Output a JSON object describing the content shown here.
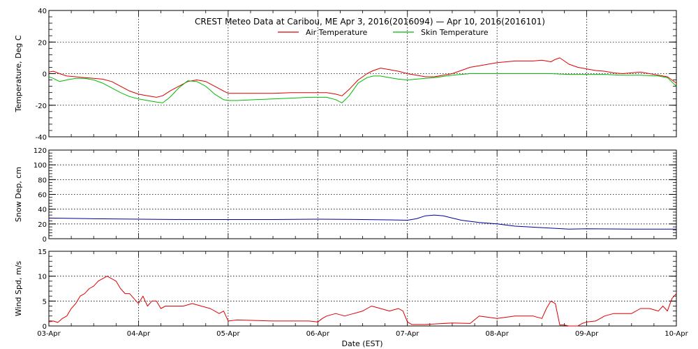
{
  "figure": {
    "title": "CREST Meteo Data at Caribou, ME   Apr  3, 2016(2016094) — Apr 10, 2016(2016101)",
    "xlabel": "Date (EST)",
    "x_tick_labels": [
      "03-Apr",
      "04-Apr",
      "05-Apr",
      "06-Apr",
      "07-Apr",
      "08-Apr",
      "09-Apr",
      "10-Apr"
    ]
  },
  "chart_data": [
    {
      "type": "line",
      "ylabel": "Temperature, Deg C",
      "xlim": [
        0,
        7
      ],
      "ylim": [
        -40,
        40
      ],
      "y_ticks": [
        -40,
        -20,
        0,
        20,
        40
      ],
      "grid": true,
      "legend": "top-center",
      "series": [
        {
          "name": "Air Temperature",
          "color": "#dd0000",
          "x": [
            0,
            0.05,
            0.12,
            0.2,
            0.3,
            0.4,
            0.5,
            0.6,
            0.7,
            0.8,
            0.9,
            1.0,
            1.1,
            1.2,
            1.27,
            1.35,
            1.45,
            1.55,
            1.65,
            1.75,
            1.85,
            1.95,
            2.0,
            2.1,
            2.3,
            2.5,
            2.7,
            2.9,
            3.0,
            3.1,
            3.2,
            3.27,
            3.35,
            3.45,
            3.55,
            3.62,
            3.7,
            3.8,
            3.9,
            4.0,
            4.1,
            4.2,
            4.3,
            4.4,
            4.5,
            4.6,
            4.7,
            4.8,
            5.0,
            5.2,
            5.4,
            5.5,
            5.55,
            5.6,
            5.65,
            5.7,
            5.8,
            5.9,
            6.0,
            6.1,
            6.2,
            6.3,
            6.4,
            6.5,
            6.6,
            6.7,
            6.8,
            6.9,
            7.0
          ],
          "y": [
            1,
            1.5,
            0,
            -1.5,
            -2,
            -2.5,
            -3,
            -3.5,
            -5,
            -8,
            -11,
            -13,
            -14,
            -15,
            -14,
            -11,
            -8,
            -5,
            -4,
            -5,
            -8,
            -11,
            -12.5,
            -12.5,
            -12.5,
            -12.5,
            -12,
            -12,
            -12,
            -12,
            -13,
            -14,
            -10,
            -4,
            0,
            2,
            3.5,
            2.5,
            1.5,
            0,
            -1,
            -2,
            -2,
            -1,
            0,
            2,
            4,
            5,
            7,
            8,
            8,
            8.5,
            8,
            7.5,
            9,
            10,
            6,
            4,
            3,
            2,
            1.5,
            0.5,
            0,
            0.5,
            1,
            0,
            -1,
            -2,
            -6
          ]
        },
        {
          "name": "Skin Temperature",
          "color": "#00bb00",
          "x": [
            0,
            0.05,
            0.12,
            0.2,
            0.3,
            0.4,
            0.5,
            0.6,
            0.7,
            0.8,
            0.9,
            1.0,
            1.1,
            1.2,
            1.27,
            1.35,
            1.45,
            1.55,
            1.65,
            1.75,
            1.85,
            1.95,
            2.0,
            2.1,
            2.3,
            2.5,
            2.7,
            2.9,
            3.0,
            3.1,
            3.2,
            3.27,
            3.35,
            3.45,
            3.55,
            3.62,
            3.7,
            3.8,
            3.9,
            4.0,
            4.1,
            4.2,
            4.3,
            4.5,
            4.7,
            4.8,
            5.0,
            5.2,
            5.4,
            5.6,
            5.8,
            6.0,
            6.2,
            6.4,
            6.6,
            6.8,
            6.9,
            7.0
          ],
          "y": [
            -2,
            -3,
            -5,
            -4,
            -3,
            -3,
            -4,
            -6,
            -9,
            -12,
            -14.5,
            -16,
            -17,
            -18,
            -18.5,
            -15,
            -9,
            -4.5,
            -5,
            -8,
            -13,
            -16.5,
            -17,
            -17,
            -16.5,
            -16,
            -15.5,
            -15,
            -15,
            -15,
            -16.5,
            -18.5,
            -14,
            -6,
            -2.5,
            -1.5,
            -1.5,
            -2.5,
            -3.5,
            -4,
            -3.5,
            -3,
            -2.5,
            -1,
            0,
            0,
            0,
            0,
            0,
            0,
            -0.5,
            -0.5,
            -0.5,
            -1,
            -1,
            -1.5,
            -2.5,
            -8
          ]
        }
      ]
    },
    {
      "type": "line",
      "ylabel": "Snow Dep, cm",
      "xlim": [
        0,
        7
      ],
      "ylim": [
        0,
        120
      ],
      "y_ticks": [
        0,
        20,
        40,
        60,
        80,
        100,
        120
      ],
      "grid": true,
      "series": [
        {
          "name": "",
          "color": "#000099",
          "x": [
            0,
            0.5,
            1.0,
            1.5,
            2.0,
            2.5,
            3.0,
            3.5,
            3.8,
            4.0,
            4.1,
            4.2,
            4.3,
            4.4,
            4.5,
            4.6,
            4.8,
            5.0,
            5.2,
            5.5,
            5.8,
            6.0,
            6.5,
            7.0
          ],
          "y": [
            28,
            27,
            26.5,
            26,
            26,
            26,
            26.5,
            26,
            25.5,
            25,
            27,
            31,
            32,
            31,
            28,
            25,
            22,
            20,
            17,
            15,
            13,
            13.5,
            13,
            13
          ]
        }
      ]
    },
    {
      "type": "line",
      "ylabel": "Wind Spd, m/s",
      "xlim": [
        0,
        7
      ],
      "ylim": [
        0,
        15
      ],
      "y_ticks": [
        0,
        5,
        10,
        15
      ],
      "grid": true,
      "series": [
        {
          "name": "",
          "color": "#dd0000",
          "x": [
            0,
            0.05,
            0.1,
            0.15,
            0.2,
            0.25,
            0.3,
            0.35,
            0.4,
            0.45,
            0.5,
            0.55,
            0.6,
            0.65,
            0.7,
            0.75,
            0.8,
            0.85,
            0.9,
            0.95,
            1.0,
            1.05,
            1.1,
            1.15,
            1.2,
            1.25,
            1.3,
            1.35,
            1.4,
            1.5,
            1.6,
            1.7,
            1.8,
            1.9,
            1.95,
            2.0,
            2.1,
            2.5,
            2.9,
            3.0,
            3.05,
            3.1,
            3.2,
            3.3,
            3.4,
            3.5,
            3.6,
            3.7,
            3.8,
            3.9,
            3.95,
            4.0,
            4.05,
            4.2,
            4.5,
            4.7,
            4.8,
            5.0,
            5.2,
            5.4,
            5.5,
            5.55,
            5.6,
            5.65,
            5.7,
            5.75,
            5.8,
            5.9,
            5.95,
            6.0,
            6.1,
            6.2,
            6.3,
            6.4,
            6.5,
            6.6,
            6.7,
            6.8,
            6.85,
            6.9,
            6.95,
            7.0
          ],
          "y": [
            0.8,
            1,
            0.7,
            1.5,
            2,
            3.5,
            4.5,
            6,
            6.5,
            7.5,
            8,
            9,
            9.5,
            10,
            9.5,
            9,
            7.5,
            6.5,
            6.5,
            5.5,
            4.5,
            6,
            4,
            5,
            5,
            3.5,
            4,
            4,
            4,
            4,
            4.5,
            4,
            3.5,
            2.5,
            3,
            1,
            1.2,
            1,
            1,
            0.8,
            1.5,
            2,
            2.5,
            2,
            2.5,
            3,
            4,
            3.5,
            3,
            3.5,
            3,
            0.8,
            0.3,
            0.3,
            0.6,
            0.5,
            2,
            1.5,
            2,
            2,
            1.5,
            3.5,
            5,
            4.5,
            0.2,
            0.2,
            0,
            0,
            0.5,
            0.8,
            1,
            2,
            2.5,
            2.5,
            2.5,
            3.5,
            3.5,
            3,
            4,
            3,
            5.5,
            6.5
          ]
        }
      ]
    }
  ]
}
